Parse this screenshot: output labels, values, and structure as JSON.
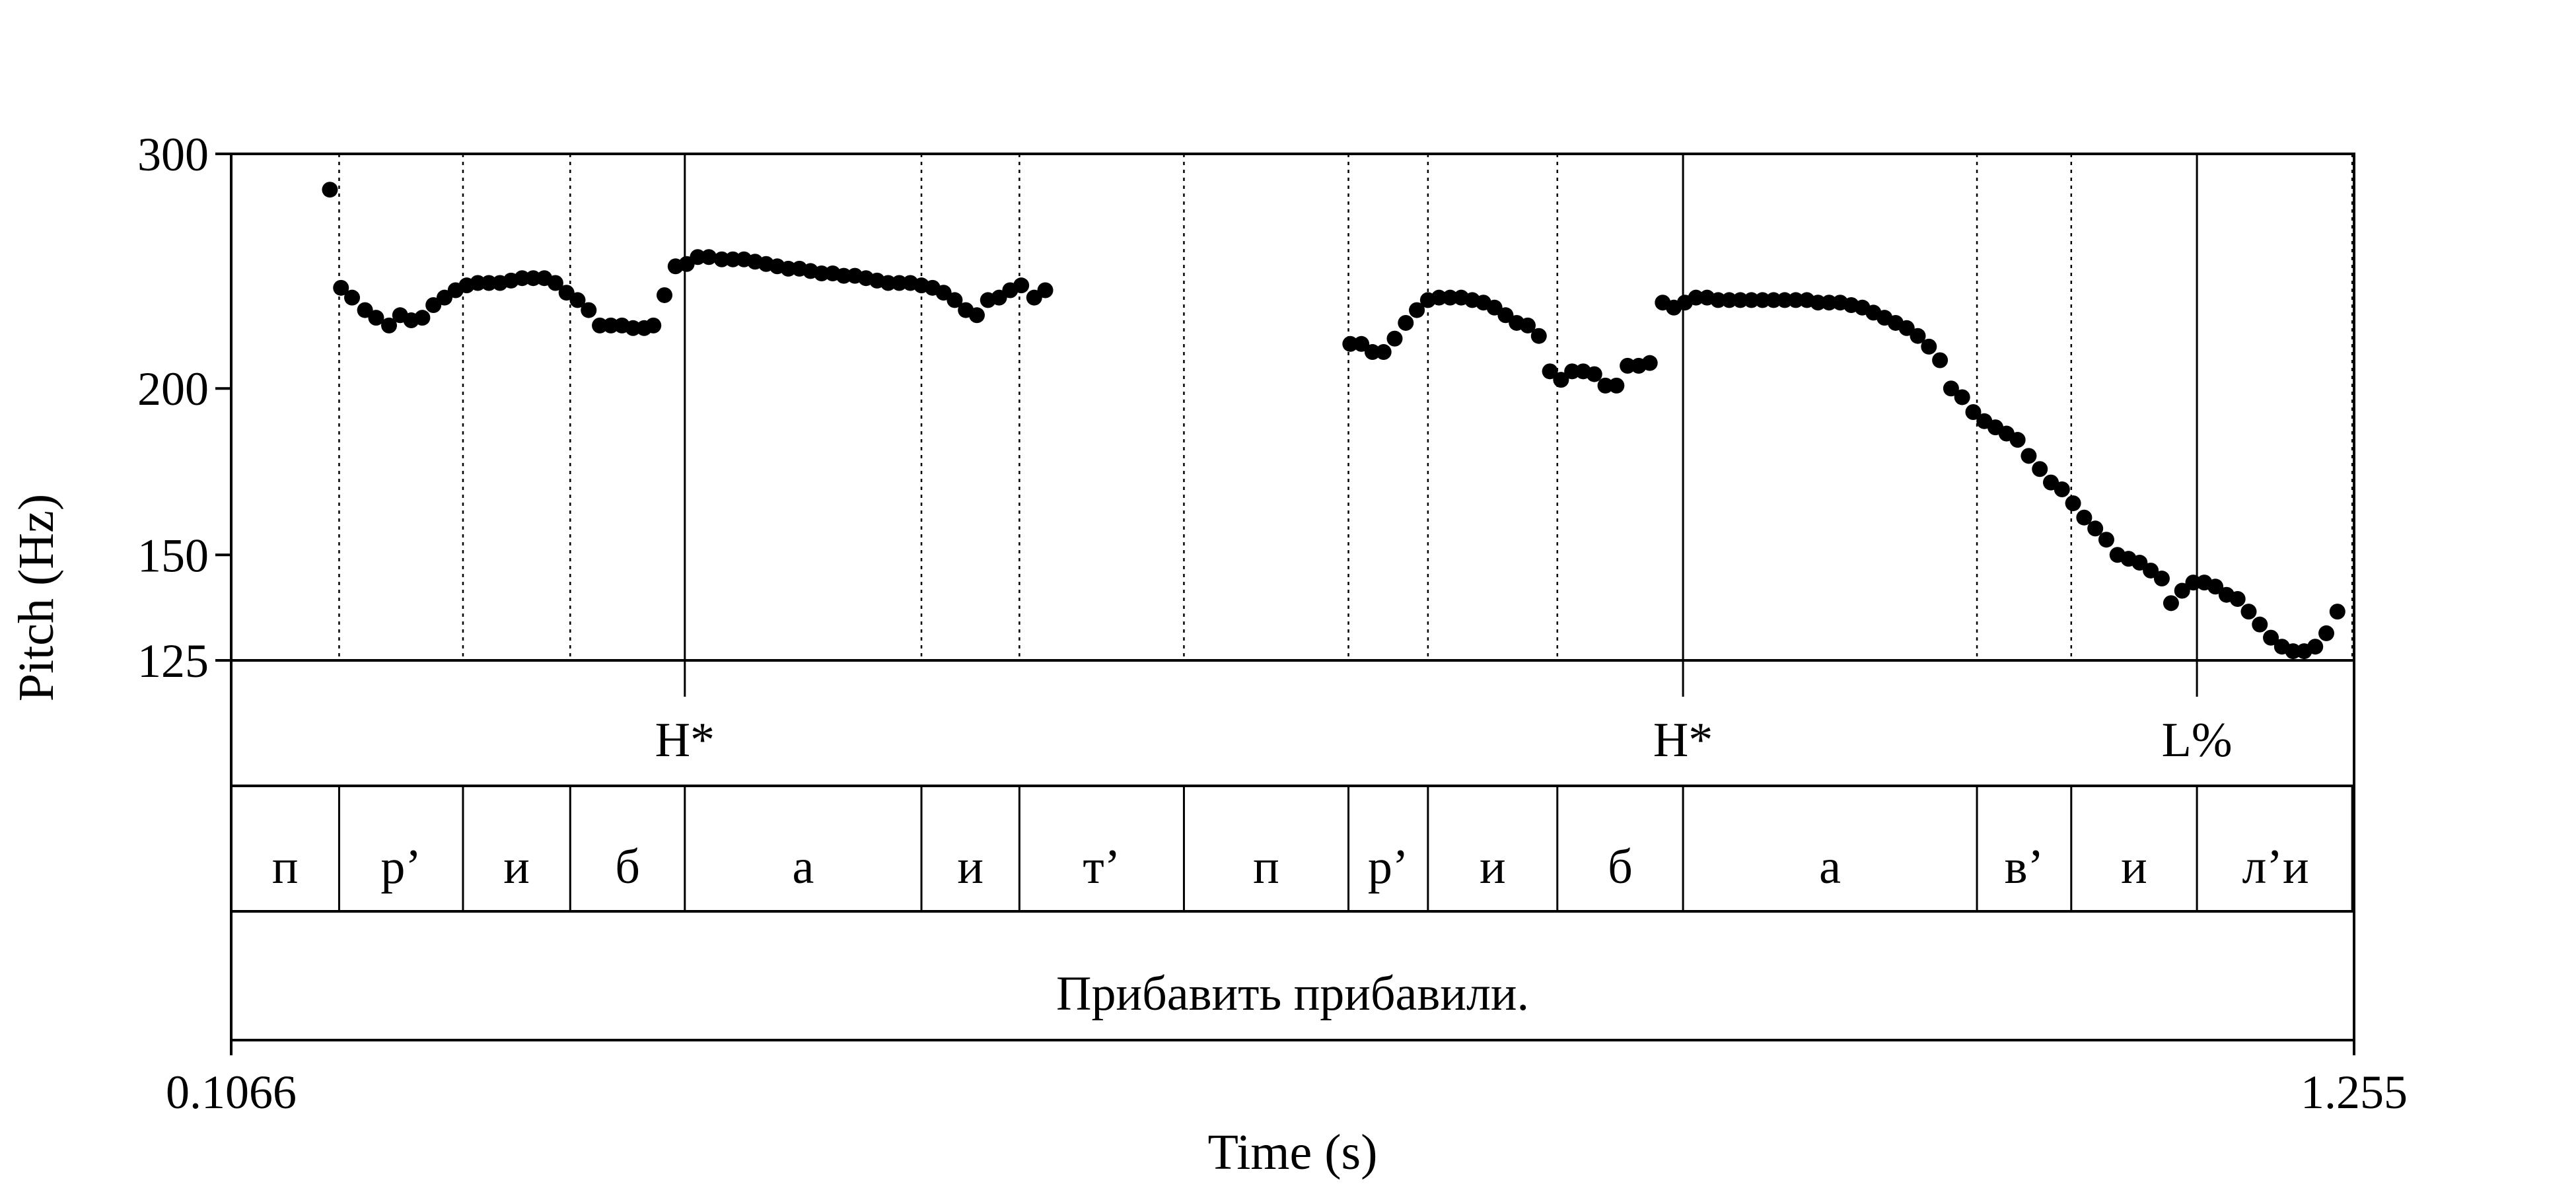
{
  "chart_data": {
    "type": "scatter",
    "xlabel": "Time (s)",
    "ylabel": "Pitch (Hz)",
    "xlim": [
      0.1066,
      1.255
    ],
    "ylim": [
      125,
      300
    ],
    "yscale": "log",
    "x_tick_labels": [
      "0.1066",
      "1.255"
    ],
    "y_ticks": [
      125,
      150,
      200,
      300
    ],
    "y_tick_labels": [
      "125",
      "150",
      "200",
      "300"
    ],
    "grid": false,
    "series": [
      {
        "points": [
          [
            0.16,
            282
          ],
          [
            0.166,
            238
          ],
          [
            0.172,
            234
          ],
          [
            0.179,
            229
          ],
          [
            0.185,
            226
          ],
          [
            0.192,
            223
          ],
          [
            0.198,
            227
          ],
          [
            0.204,
            225
          ],
          [
            0.21,
            226
          ],
          [
            0.216,
            231
          ],
          [
            0.222,
            234
          ],
          [
            0.228,
            237
          ],
          [
            0.234,
            239
          ],
          [
            0.24,
            240
          ],
          [
            0.246,
            240
          ],
          [
            0.252,
            240
          ],
          [
            0.258,
            241
          ],
          [
            0.264,
            242
          ],
          [
            0.27,
            242
          ],
          [
            0.276,
            242
          ],
          [
            0.282,
            240
          ],
          [
            0.288,
            236
          ],
          [
            0.294,
            233
          ],
          [
            0.3,
            229
          ],
          [
            0.306,
            223
          ],
          [
            0.312,
            223
          ],
          [
            0.318,
            223
          ],
          [
            0.324,
            222
          ],
          [
            0.33,
            222
          ],
          [
            0.335,
            223
          ],
          [
            0.341,
            235
          ],
          [
            0.347,
            247
          ],
          [
            0.353,
            248
          ],
          [
            0.359,
            251
          ],
          [
            0.365,
            251
          ],
          [
            0.372,
            250
          ],
          [
            0.378,
            250
          ],
          [
            0.384,
            250
          ],
          [
            0.39,
            249
          ],
          [
            0.396,
            248
          ],
          [
            0.402,
            247
          ],
          [
            0.408,
            246
          ],
          [
            0.414,
            246
          ],
          [
            0.42,
            245
          ],
          [
            0.426,
            244
          ],
          [
            0.432,
            244
          ],
          [
            0.438,
            243
          ],
          [
            0.444,
            243
          ],
          [
            0.45,
            242
          ],
          [
            0.456,
            241
          ],
          [
            0.462,
            240
          ],
          [
            0.468,
            240
          ],
          [
            0.474,
            240
          ],
          [
            0.48,
            239
          ],
          [
            0.486,
            238
          ],
          [
            0.492,
            236
          ],
          [
            0.498,
            233
          ],
          [
            0.504,
            229
          ],
          [
            0.51,
            227
          ],
          [
            0.516,
            233
          ],
          [
            0.522,
            234
          ],
          [
            0.528,
            237
          ],
          [
            0.534,
            239
          ],
          [
            0.541,
            234
          ],
          [
            0.547,
            237
          ],
          [
            0.712,
            216
          ],
          [
            0.718,
            216
          ],
          [
            0.724,
            213
          ],
          [
            0.73,
            213
          ],
          [
            0.736,
            218
          ],
          [
            0.742,
            224
          ],
          [
            0.748,
            229
          ],
          [
            0.754,
            233
          ],
          [
            0.76,
            234
          ],
          [
            0.766,
            234
          ],
          [
            0.772,
            234
          ],
          [
            0.778,
            233
          ],
          [
            0.784,
            232
          ],
          [
            0.79,
            230
          ],
          [
            0.796,
            227
          ],
          [
            0.802,
            224
          ],
          [
            0.808,
            223
          ],
          [
            0.814,
            219
          ],
          [
            0.82,
            206
          ],
          [
            0.826,
            203
          ],
          [
            0.832,
            206
          ],
          [
            0.838,
            206
          ],
          [
            0.844,
            205
          ],
          [
            0.85,
            201
          ],
          [
            0.856,
            201
          ],
          [
            0.862,
            208
          ],
          [
            0.868,
            208
          ],
          [
            0.874,
            209
          ],
          [
            0.881,
            232
          ],
          [
            0.887,
            230
          ],
          [
            0.893,
            232
          ],
          [
            0.899,
            234
          ],
          [
            0.905,
            234
          ],
          [
            0.911,
            233
          ],
          [
            0.917,
            233
          ],
          [
            0.923,
            233
          ],
          [
            0.929,
            233
          ],
          [
            0.935,
            233
          ],
          [
            0.941,
            233
          ],
          [
            0.947,
            233
          ],
          [
            0.953,
            233
          ],
          [
            0.959,
            233
          ],
          [
            0.965,
            232
          ],
          [
            0.971,
            232
          ],
          [
            0.977,
            232
          ],
          [
            0.983,
            231
          ],
          [
            0.989,
            230
          ],
          [
            0.995,
            228
          ],
          [
            1.001,
            226
          ],
          [
            1.007,
            224
          ],
          [
            1.013,
            222
          ],
          [
            1.019,
            219
          ],
          [
            1.025,
            215
          ],
          [
            1.031,
            210
          ],
          [
            1.037,
            200
          ],
          [
            1.043,
            197
          ],
          [
            1.049,
            192
          ],
          [
            1.055,
            189
          ],
          [
            1.061,
            187
          ],
          [
            1.067,
            185
          ],
          [
            1.073,
            183
          ],
          [
            1.079,
            178
          ],
          [
            1.085,
            174
          ],
          [
            1.091,
            170
          ],
          [
            1.097,
            168
          ],
          [
            1.103,
            164
          ],
          [
            1.109,
            160
          ],
          [
            1.115,
            157
          ],
          [
            1.121,
            154
          ],
          [
            1.127,
            150
          ],
          [
            1.133,
            149
          ],
          [
            1.139,
            148
          ],
          [
            1.145,
            146
          ],
          [
            1.151,
            144
          ],
          [
            1.156,
            138
          ],
          [
            1.162,
            141
          ],
          [
            1.168,
            143
          ],
          [
            1.174,
            143
          ],
          [
            1.18,
            142
          ],
          [
            1.186,
            140
          ],
          [
            1.192,
            139
          ],
          [
            1.198,
            136
          ],
          [
            1.204,
            133
          ],
          [
            1.21,
            130
          ],
          [
            1.216,
            128
          ],
          [
            1.222,
            127
          ],
          [
            1.228,
            127
          ],
          [
            1.234,
            128
          ],
          [
            1.24,
            131
          ],
          [
            1.246,
            136
          ]
        ]
      }
    ],
    "boundaries": [
      0.1066,
      0.165,
      0.232,
      0.29,
      0.352,
      0.48,
      0.533,
      0.622,
      0.711,
      0.754,
      0.824,
      0.892,
      1.051,
      1.102,
      1.17,
      1.254
    ],
    "tones": [
      {
        "time": 0.352,
        "label": "H*"
      },
      {
        "time": 0.892,
        "label": "H*"
      },
      {
        "time": 1.17,
        "label": "L%"
      }
    ],
    "segments": [
      {
        "start": 0.1066,
        "end": 0.165,
        "label": "п"
      },
      {
        "start": 0.165,
        "end": 0.232,
        "label": "р’"
      },
      {
        "start": 0.232,
        "end": 0.29,
        "label": "и"
      },
      {
        "start": 0.29,
        "end": 0.352,
        "label": "б"
      },
      {
        "start": 0.352,
        "end": 0.48,
        "label": "а"
      },
      {
        "start": 0.48,
        "end": 0.533,
        "label": "и"
      },
      {
        "start": 0.533,
        "end": 0.622,
        "label": "т’"
      },
      {
        "start": 0.622,
        "end": 0.711,
        "label": "п"
      },
      {
        "start": 0.711,
        "end": 0.754,
        "label": "р’"
      },
      {
        "start": 0.754,
        "end": 0.824,
        "label": "и"
      },
      {
        "start": 0.824,
        "end": 0.892,
        "label": "б"
      },
      {
        "start": 0.892,
        "end": 1.051,
        "label": "а"
      },
      {
        "start": 1.051,
        "end": 1.102,
        "label": "в’"
      },
      {
        "start": 1.102,
        "end": 1.17,
        "label": "и"
      },
      {
        "start": 1.17,
        "end": 1.255,
        "label": "л’и"
      }
    ],
    "sentence": "Прибавить прибавили."
  }
}
